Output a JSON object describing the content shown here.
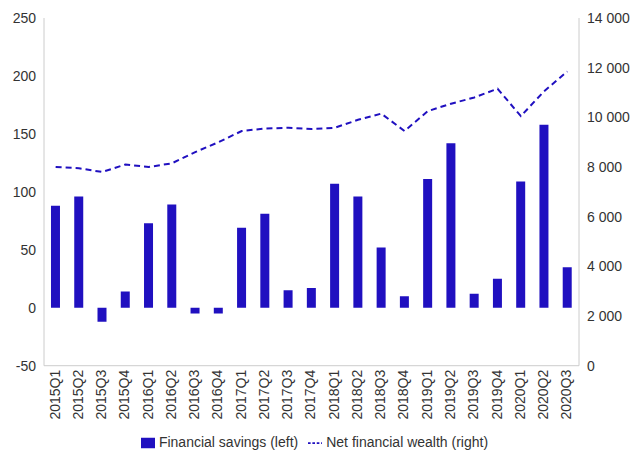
{
  "chart_data": {
    "type": "bar",
    "categories": [
      "2015Q1",
      "2015Q2",
      "2015Q3",
      "2015Q4",
      "2016Q1",
      "2016Q2",
      "2016Q3",
      "2016Q4",
      "2017Q1",
      "2017Q2",
      "2017Q3",
      "2017Q4",
      "2018Q1",
      "2018Q2",
      "2018Q3",
      "2018Q4",
      "2019Q1",
      "2019Q2",
      "2019Q3",
      "2019Q4",
      "2020Q1",
      "2020Q2",
      "2020Q3"
    ],
    "series": [
      {
        "name": "Financial savings (left)",
        "type": "bar",
        "color": "#2010c0",
        "values": [
          88,
          96,
          -12,
          14,
          73,
          89,
          -5,
          -5,
          69,
          81,
          15,
          17,
          107,
          96,
          52,
          10,
          111,
          142,
          12,
          25,
          109,
          158,
          35
        ]
      },
      {
        "name": "Net financial wealth (right)",
        "type": "line",
        "axis": "y2",
        "line_style": "dashed",
        "color": "#2010c0",
        "values": [
          8000,
          7950,
          7800,
          8100,
          8000,
          8150,
          8600,
          9000,
          9450,
          9550,
          9580,
          9530,
          9580,
          9900,
          10150,
          9450,
          10250,
          10550,
          10800,
          11150,
          10050,
          11050,
          11850
        ]
      }
    ],
    "ylim": [
      -50,
      250
    ],
    "yticks": [
      -50,
      0,
      50,
      100,
      150,
      200,
      250
    ],
    "y2lim": [
      0,
      14000
    ],
    "y2ticks": [
      0,
      {
        "value": 2000,
        "label": "2 000"
      },
      {
        "value": 4000,
        "label": "4 000"
      },
      {
        "value": 6000,
        "label": "6 000"
      },
      {
        "value": 8000,
        "label": "8 000"
      },
      {
        "value": 10000,
        "label": "10 000"
      },
      {
        "value": 12000,
        "label": "12 000"
      },
      {
        "value": 14000,
        "label": "14 000"
      }
    ],
    "grid": false,
    "legend": "bottom"
  }
}
